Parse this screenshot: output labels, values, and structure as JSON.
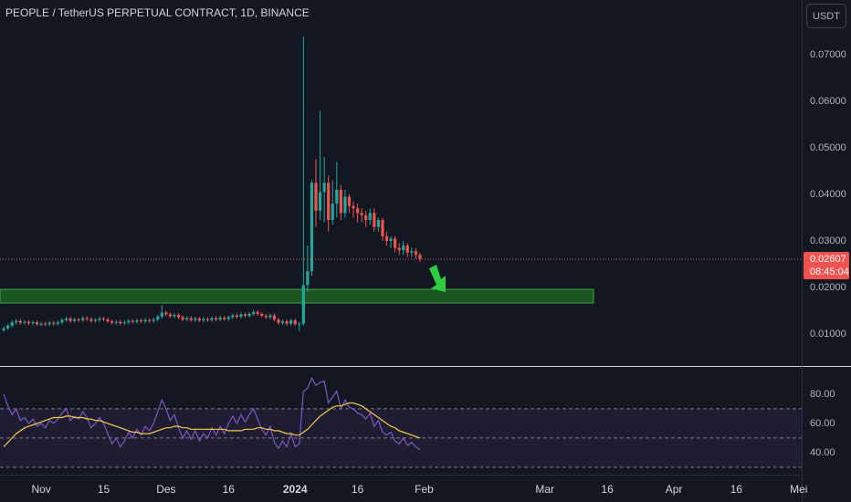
{
  "chart_data": [
    {
      "type": "candlestick",
      "title": "PEOPLE / TetherUS PERPETUAL CONTRACT, 1D, BINANCE",
      "currency": "USDT",
      "up_color": "#26a69a",
      "down_color": "#ef5350",
      "xlim": [
        -9.9,
        182.7
      ],
      "ylim": [
        0.0033,
        0.0818
      ],
      "yticks": [
        {
          "value": 0.01,
          "label": "0.01000"
        },
        {
          "value": 0.02,
          "label": "0.02000"
        },
        {
          "value": 0.03,
          "label": "0.03000"
        },
        {
          "value": 0.04,
          "label": "0.04000"
        },
        {
          "value": 0.05,
          "label": "0.05000"
        },
        {
          "value": 0.06,
          "label": "0.06000"
        },
        {
          "value": 0.07,
          "label": "0.07000"
        }
      ],
      "last_price": {
        "value": 0.02607,
        "label": "0.02607"
      },
      "countdown": "08:45:04",
      "x": [
        -9,
        -8,
        -7,
        -6,
        -5,
        -4,
        -3,
        -2,
        -1,
        0,
        1,
        2,
        3,
        4,
        5,
        6,
        7,
        8,
        9,
        10,
        11,
        12,
        13,
        14,
        15,
        16,
        17,
        18,
        19,
        20,
        21,
        22,
        23,
        24,
        25,
        26,
        27,
        28,
        29,
        30,
        31,
        32,
        33,
        34,
        35,
        36,
        37,
        38,
        39,
        40,
        41,
        42,
        43,
        44,
        45,
        46,
        47,
        48,
        49,
        50,
        51,
        52,
        53,
        54,
        55,
        56,
        57,
        58,
        59,
        60,
        61,
        62,
        63,
        64,
        65,
        66,
        67,
        68,
        69,
        70,
        71,
        72,
        73,
        74,
        75,
        76,
        77,
        78,
        79,
        80,
        81,
        82,
        83,
        84,
        85,
        86,
        87,
        88,
        89,
        90,
        91
      ],
      "opens": [
        0.0108,
        0.0112,
        0.0118,
        0.0125,
        0.0128,
        0.0124,
        0.0126,
        0.0123,
        0.0125,
        0.0121,
        0.0122,
        0.0121,
        0.0124,
        0.0122,
        0.0125,
        0.013,
        0.0133,
        0.0128,
        0.0131,
        0.013,
        0.0134,
        0.0132,
        0.0128,
        0.013,
        0.0133,
        0.0131,
        0.0127,
        0.0124,
        0.0126,
        0.0123,
        0.0125,
        0.0128,
        0.0126,
        0.0129,
        0.0127,
        0.013,
        0.0128,
        0.0131,
        0.0137,
        0.0146,
        0.0142,
        0.0138,
        0.0141,
        0.0136,
        0.0131,
        0.0134,
        0.013,
        0.0133,
        0.0129,
        0.0132,
        0.013,
        0.0134,
        0.0131,
        0.0135,
        0.0132,
        0.0136,
        0.014,
        0.0137,
        0.0142,
        0.0139,
        0.0143,
        0.0147,
        0.0143,
        0.0139,
        0.0136,
        0.014,
        0.0131,
        0.0124,
        0.0127,
        0.0122,
        0.0129,
        0.0121,
        0.0122,
        0.0205,
        0.0235,
        0.0425,
        0.0365,
        0.0405,
        0.0425,
        0.0345,
        0.038,
        0.041,
        0.036,
        0.0395,
        0.0375,
        0.037,
        0.036,
        0.0355,
        0.0345,
        0.036,
        0.033,
        0.0345,
        0.031,
        0.03,
        0.0305,
        0.0285,
        0.028,
        0.029,
        0.0275,
        0.0278,
        0.027
      ],
      "highs": [
        0.0116,
        0.0122,
        0.0129,
        0.0132,
        0.0132,
        0.013,
        0.013,
        0.0129,
        0.0129,
        0.0126,
        0.0126,
        0.0128,
        0.0128,
        0.0129,
        0.0134,
        0.0137,
        0.0137,
        0.0135,
        0.0135,
        0.0138,
        0.0138,
        0.0136,
        0.0134,
        0.0137,
        0.0137,
        0.0135,
        0.0131,
        0.013,
        0.013,
        0.0129,
        0.0132,
        0.0132,
        0.0133,
        0.0133,
        0.0134,
        0.0134,
        0.0135,
        0.0141,
        0.0162,
        0.015,
        0.0146,
        0.0145,
        0.0145,
        0.014,
        0.0138,
        0.0138,
        0.0137,
        0.0137,
        0.0136,
        0.0136,
        0.0138,
        0.0138,
        0.0139,
        0.0139,
        0.014,
        0.0144,
        0.0144,
        0.0146,
        0.0146,
        0.0147,
        0.0151,
        0.0151,
        0.0147,
        0.0143,
        0.0144,
        0.0144,
        0.0135,
        0.0131,
        0.0131,
        0.0133,
        0.0133,
        0.0126,
        0.0739,
        0.029,
        0.043,
        0.0475,
        0.058,
        0.048,
        0.044,
        0.043,
        0.047,
        0.042,
        0.041,
        0.04,
        0.0385,
        0.038,
        0.037,
        0.0365,
        0.037,
        0.037,
        0.035,
        0.035,
        0.032,
        0.031,
        0.031,
        0.0295,
        0.03,
        0.0295,
        0.0285,
        0.0285,
        0.0275
      ],
      "lows": [
        0.0104,
        0.0108,
        0.0114,
        0.0121,
        0.012,
        0.012,
        0.0119,
        0.0119,
        0.0117,
        0.0117,
        0.0117,
        0.0117,
        0.0118,
        0.0118,
        0.0121,
        0.0126,
        0.0124,
        0.0124,
        0.0126,
        0.0126,
        0.0128,
        0.0124,
        0.0124,
        0.0126,
        0.0127,
        0.0123,
        0.012,
        0.012,
        0.0119,
        0.0119,
        0.0121,
        0.0122,
        0.0122,
        0.0123,
        0.0123,
        0.0124,
        0.0124,
        0.0127,
        0.0133,
        0.0138,
        0.0134,
        0.0134,
        0.0132,
        0.0127,
        0.0127,
        0.0126,
        0.0126,
        0.0125,
        0.0125,
        0.0126,
        0.0126,
        0.0127,
        0.0127,
        0.0128,
        0.0128,
        0.0132,
        0.0133,
        0.0133,
        0.0135,
        0.0135,
        0.0139,
        0.0139,
        0.0135,
        0.0132,
        0.0132,
        0.0127,
        0.012,
        0.012,
        0.0118,
        0.0118,
        0.0117,
        0.0106,
        0.0118,
        0.019,
        0.0225,
        0.033,
        0.0345,
        0.034,
        0.032,
        0.0335,
        0.035,
        0.0345,
        0.035,
        0.036,
        0.035,
        0.034,
        0.034,
        0.033,
        0.0335,
        0.032,
        0.032,
        0.03,
        0.029,
        0.0285,
        0.0275,
        0.027,
        0.027,
        0.0265,
        0.0265,
        0.0262,
        0.0255
      ],
      "closes": [
        0.0112,
        0.0118,
        0.0125,
        0.0128,
        0.0124,
        0.0126,
        0.0123,
        0.0125,
        0.0121,
        0.0122,
        0.0121,
        0.0124,
        0.0122,
        0.0125,
        0.013,
        0.0133,
        0.0128,
        0.0131,
        0.013,
        0.0134,
        0.0132,
        0.0128,
        0.013,
        0.0133,
        0.0131,
        0.0127,
        0.0124,
        0.0126,
        0.0123,
        0.0125,
        0.0128,
        0.0126,
        0.0129,
        0.0127,
        0.013,
        0.0128,
        0.0131,
        0.0137,
        0.0146,
        0.0142,
        0.0138,
        0.0141,
        0.0136,
        0.0131,
        0.0134,
        0.013,
        0.0133,
        0.0129,
        0.0132,
        0.013,
        0.0134,
        0.0131,
        0.0135,
        0.0132,
        0.0136,
        0.014,
        0.0137,
        0.0142,
        0.0139,
        0.0143,
        0.0147,
        0.0143,
        0.0139,
        0.0136,
        0.014,
        0.0131,
        0.0124,
        0.0127,
        0.0122,
        0.0129,
        0.0121,
        0.0122,
        0.0205,
        0.0235,
        0.0425,
        0.0365,
        0.0405,
        0.0425,
        0.0345,
        0.038,
        0.041,
        0.036,
        0.0395,
        0.0375,
        0.037,
        0.036,
        0.0355,
        0.0345,
        0.036,
        0.033,
        0.0345,
        0.031,
        0.03,
        0.0305,
        0.0285,
        0.028,
        0.029,
        0.0275,
        0.0278,
        0.027,
        0.0261
      ]
    },
    {
      "type": "line",
      "ylim": [
        25,
        98
      ],
      "yticks": [
        {
          "value": 40,
          "label": "40.00"
        },
        {
          "value": 60,
          "label": "60.00"
        },
        {
          "value": 80,
          "label": "80.00"
        }
      ],
      "bands": [
        70,
        50,
        30
      ],
      "band_color": "#7e57c2",
      "xticks": [
        {
          "value": 0,
          "label": "Nov"
        },
        15,
        {
          "value": 30,
          "label": "Des"
        },
        {
          "value": 45,
          "label": "16"
        },
        {
          "value": 61,
          "label": "2024"
        },
        {
          "value": 76,
          "label": "16"
        },
        {
          "value": 92,
          "label": "Feb"
        },
        {
          "value": 121,
          "label": "Mar"
        },
        {
          "value": 136,
          "label": "16"
        },
        {
          "value": 152,
          "label": "Apr"
        },
        {
          "value": 167,
          "label": "16"
        },
        {
          "value": 182,
          "label": "Mei"
        }
      ],
      "series": [
        {
          "color": "#7e57c2",
          "values": [
            80,
            72,
            66,
            70,
            62,
            64,
            60,
            63,
            58,
            60,
            57,
            62,
            60,
            63,
            67,
            70,
            62,
            65,
            63,
            68,
            64,
            57,
            60,
            64,
            60,
            53,
            46,
            50,
            44,
            48,
            54,
            50,
            56,
            52,
            58,
            55,
            60,
            68,
            76,
            70,
            62,
            66,
            57,
            50,
            55,
            49,
            55,
            48,
            53,
            50,
            57,
            52,
            58,
            53,
            60,
            65,
            60,
            66,
            61,
            66,
            70,
            63,
            56,
            52,
            58,
            47,
            43,
            48,
            44,
            53,
            44,
            46,
            82,
            84,
            91,
            86,
            88,
            89,
            74,
            78,
            82,
            70,
            76,
            71,
            70,
            67,
            66,
            63,
            67,
            58,
            62,
            54,
            52,
            54,
            48,
            46,
            50,
            45,
            47,
            44,
            42
          ]
        },
        {
          "color": "#f7c948",
          "values": [
            44,
            47,
            50,
            53,
            55,
            57,
            58,
            59,
            60,
            61,
            62,
            63,
            64,
            64,
            64,
            65,
            65,
            64,
            64,
            64,
            63,
            63,
            62,
            62,
            61,
            60,
            59,
            58,
            57,
            56,
            55,
            54,
            54,
            53,
            53,
            53,
            54,
            55,
            56,
            57,
            57,
            58,
            58,
            57,
            57,
            56,
            56,
            56,
            56,
            56,
            56,
            56,
            56,
            56,
            55,
            55,
            55,
            55,
            56,
            56,
            56,
            57,
            57,
            56,
            56,
            55,
            55,
            54,
            53,
            53,
            52,
            52,
            54,
            56,
            59,
            62,
            65,
            67,
            69,
            71,
            72,
            72,
            73,
            74,
            74,
            73,
            72,
            70,
            68,
            66,
            64,
            62,
            60,
            58,
            57,
            55,
            54,
            53,
            52,
            51,
            50
          ]
        }
      ]
    }
  ]
}
